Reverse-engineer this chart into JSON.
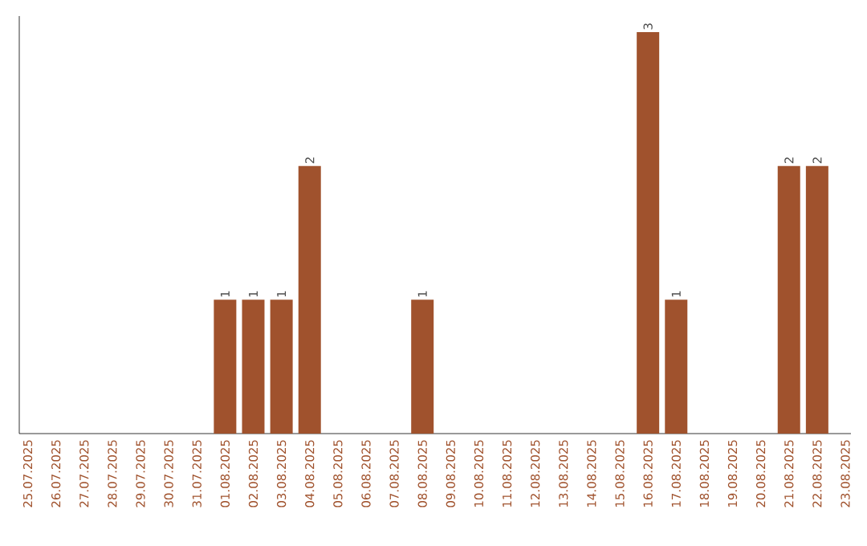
{
  "chart_data": {
    "type": "bar",
    "categories": [
      "25.07.2025",
      "26.07.2025",
      "27.07.2025",
      "28.07.2025",
      "29.07.2025",
      "30.07.2025",
      "31.07.2025",
      "01.08.2025",
      "02.08.2025",
      "03.08.2025",
      "04.08.2025",
      "05.08.2025",
      "06.08.2025",
      "07.08.2025",
      "08.08.2025",
      "09.08.2025",
      "10.08.2025",
      "11.08.2025",
      "12.08.2025",
      "13.08.2025",
      "14.08.2025",
      "15.08.2025",
      "16.08.2025",
      "17.08.2025",
      "18.08.2025",
      "19.08.2025",
      "20.08.2025",
      "21.08.2025",
      "22.08.2025",
      "23.08.2025"
    ],
    "values": [
      0,
      0,
      0,
      0,
      0,
      0,
      0,
      1,
      1,
      1,
      2,
      0,
      0,
      0,
      1,
      0,
      0,
      0,
      0,
      0,
      0,
      0,
      3,
      1,
      0,
      0,
      0,
      2,
      2,
      0
    ],
    "value_labels": [
      null,
      null,
      null,
      null,
      null,
      null,
      null,
      "1",
      "1",
      "1",
      "2",
      null,
      null,
      null,
      "1",
      null,
      null,
      null,
      null,
      null,
      null,
      null,
      "3",
      "1",
      null,
      null,
      null,
      "2",
      "2",
      null
    ],
    "color": "#a0522d",
    "ylim": [
      0,
      3.12
    ],
    "tick_labels": "x",
    "grid": false
  }
}
